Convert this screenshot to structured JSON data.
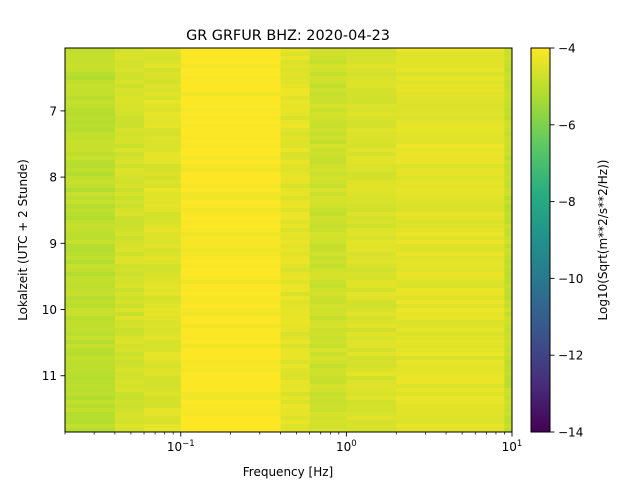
{
  "chart_data": {
    "type": "heatmap",
    "title": "GR GRFUR  BHZ: 2020-04-23",
    "xlabel": "Frequency [Hz]",
    "ylabel": "Lokalzeit (UTC + 2 Stunde)",
    "x_scale": "log",
    "xlim": [
      0.02,
      10
    ],
    "ylim": [
      11.85,
      6.05
    ],
    "y_inverted": true,
    "x_ticks": [
      {
        "value": 0.1,
        "base": "10",
        "exp": "−1"
      },
      {
        "value": 1,
        "base": "10",
        "exp": "0"
      },
      {
        "value": 10,
        "base": "10",
        "exp": "1"
      }
    ],
    "y_ticks": [
      {
        "value": 7,
        "label": "7"
      },
      {
        "value": 8,
        "label": "8"
      },
      {
        "value": 9,
        "label": "9"
      },
      {
        "value": 10,
        "label": "10"
      },
      {
        "value": 11,
        "label": "11"
      }
    ],
    "colorbar": {
      "label": "Log10(Sqrt(m**2/s**2/Hz))",
      "colormap": "viridis",
      "range": [
        -14,
        -4
      ],
      "ticks": [
        {
          "value": -4,
          "label": "−4"
        },
        {
          "value": -6,
          "label": "−6"
        },
        {
          "value": -8,
          "label": "−8"
        },
        {
          "value": -10,
          "label": "−10"
        },
        {
          "value": -12,
          "label": "−12"
        },
        {
          "value": -14,
          "label": "−14"
        }
      ]
    },
    "frequency_bands": [
      {
        "f_min": 0.02,
        "f_max": 0.04,
        "value": -5.0
      },
      {
        "f_min": 0.04,
        "f_max": 0.06,
        "value": -4.65
      },
      {
        "f_min": 0.06,
        "f_max": 0.1,
        "value": -4.5
      },
      {
        "f_min": 0.1,
        "f_max": 0.4,
        "value": -4.05
      },
      {
        "f_min": 0.4,
        "f_max": 0.6,
        "value": -4.4
      },
      {
        "f_min": 0.6,
        "f_max": 1.0,
        "value": -4.75
      },
      {
        "f_min": 1.0,
        "f_max": 2.0,
        "value": -4.55
      },
      {
        "f_min": 2.0,
        "f_max": 9.0,
        "value": -4.4
      },
      {
        "f_min": 9.0,
        "f_max": 10.0,
        "value": -4.9
      }
    ],
    "grid": false
  }
}
